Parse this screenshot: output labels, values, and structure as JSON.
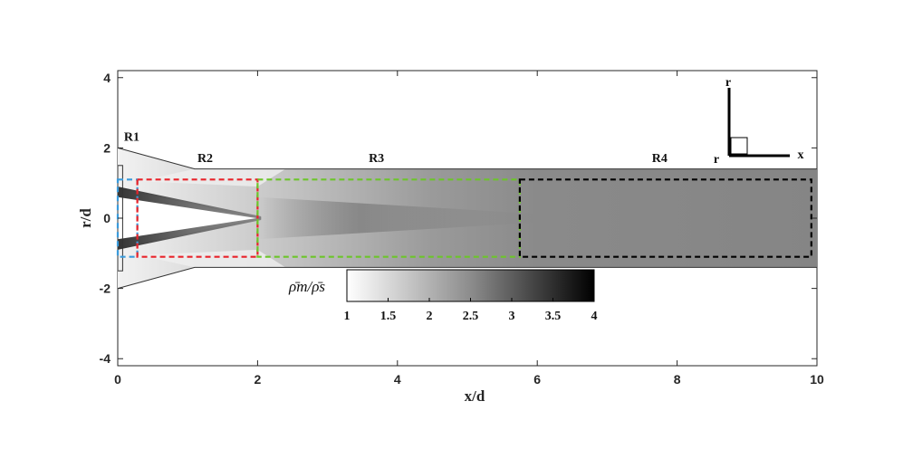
{
  "chart_data": {
    "type": "heatmap",
    "xlabel": "x/d",
    "ylabel": "r/d",
    "xlim": [
      0,
      10
    ],
    "ylim": [
      -4.2,
      4.2
    ],
    "xticks": [
      0,
      2,
      4,
      6,
      8,
      10
    ],
    "yticks": [
      -4,
      -2,
      0,
      2,
      4
    ],
    "colorbar": {
      "title": "ρ̄m/ρ̄s",
      "range": [
        1,
        4
      ],
      "ticks": [
        1,
        1.5,
        2,
        2.5,
        3,
        3.5,
        4
      ],
      "tick_labels": [
        "1",
        "1.5",
        "2",
        "2.5",
        "3",
        "3.5",
        "4"
      ],
      "colormap": "white-to-black"
    },
    "regions": [
      {
        "label": "R1",
        "x": [
          0,
          0.28
        ],
        "r": [
          -1.1,
          1.1
        ],
        "color": "#3a9bdc"
      },
      {
        "label": "R2",
        "x": [
          0.28,
          2.0
        ],
        "r": [
          -1.1,
          1.1
        ],
        "color": "#e8232a"
      },
      {
        "label": "R3",
        "x": [
          2.0,
          5.75
        ],
        "r": [
          -1.1,
          1.1
        ],
        "color": "#6cc52a"
      },
      {
        "label": "R4",
        "x": [
          5.75,
          9.92
        ],
        "r": [
          -1.1,
          1.1
        ],
        "color": "#000000"
      }
    ],
    "region_label_positions": [
      {
        "label": "R1",
        "x": 0.2,
        "r": 2.2
      },
      {
        "label": "R2",
        "x": 1.25,
        "r": 1.6
      },
      {
        "label": "R3",
        "x": 3.7,
        "r": 1.6
      },
      {
        "label": "R4",
        "x": 7.75,
        "r": 1.6
      }
    ],
    "geometry_outline": [
      [
        0.0,
        2.0
      ],
      [
        1.1,
        1.4
      ],
      [
        10.0,
        1.4
      ],
      [
        10.0,
        -1.4
      ],
      [
        1.1,
        -1.4
      ],
      [
        0.0,
        -2.0
      ]
    ],
    "coordinate_inset": {
      "axes": [
        "r",
        "x"
      ],
      "origin_label": "r"
    }
  }
}
